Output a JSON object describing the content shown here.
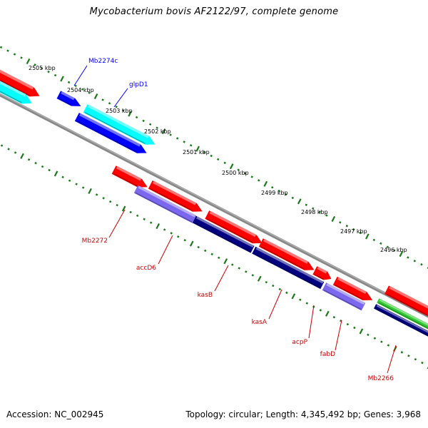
{
  "title": "Mycobacterium bovis AF2122/97, complete genome",
  "footer": {
    "accession": "Accession: NC_002945",
    "topology": "Topology: circular; Length: 4,345,492 bp; Genes: 3,968"
  },
  "colors": {
    "background": "#ffffff",
    "backbone": "#888888",
    "tick": "#1a7a1a",
    "forward_gene": "#ff0000",
    "forward_gene_alt": "#00ffff",
    "reverse_gene": "#0000ff",
    "reverse_gene_alt": "#7b68ee",
    "reverse_gene_dark": "#000080",
    "rna_gene": "#33cc33",
    "forward_label": "#0000ff",
    "reverse_label": "#cc0000"
  },
  "ticks": [
    {
      "label": "2505 kbp"
    },
    {
      "label": "2504 kbp"
    },
    {
      "label": "2503 kbp"
    },
    {
      "label": "2502 kbp"
    },
    {
      "label": "2501 kbp"
    },
    {
      "label": "2500 kbp"
    },
    {
      "label": "2499 kbp"
    },
    {
      "label": "2498 kbp"
    },
    {
      "label": "2497 kbp"
    },
    {
      "label": "2496 kbp"
    }
  ],
  "features": [
    {
      "name": "edge-red-upper",
      "color": "#ff0000"
    },
    {
      "name": "edge-cyan-lower",
      "color": "#00ffff"
    },
    {
      "name": "Mb2274c-small",
      "color": "#0000ff"
    },
    {
      "name": "Mb2274c",
      "color": "#0000ff"
    },
    {
      "name": "glpD1",
      "color": "#00ffff"
    },
    {
      "name": "Mb2272",
      "color": "#ff0000"
    },
    {
      "name": "accD6",
      "color": "#ff0000"
    },
    {
      "name": "accD6-shadow",
      "color": "#7b68ee"
    },
    {
      "name": "kasB",
      "color": "#ff0000"
    },
    {
      "name": "kasB-shadow",
      "color": "#000080"
    },
    {
      "name": "kasA",
      "color": "#ff0000"
    },
    {
      "name": "kasA-shadow",
      "color": "#000080"
    },
    {
      "name": "acpP",
      "color": "#ff0000"
    },
    {
      "name": "fabD",
      "color": "#ff0000"
    },
    {
      "name": "fabD-shadow",
      "color": "#7b68ee"
    },
    {
      "name": "Mb2266-rna",
      "color": "#33cc33"
    },
    {
      "name": "Mb2266",
      "color": "#000080"
    },
    {
      "name": "far-right-red",
      "color": "#ff0000"
    }
  ],
  "gene_labels": [
    {
      "text": "Mb2274c",
      "color": "#0000ff"
    },
    {
      "text": "glpD1",
      "color": "#0000ff"
    },
    {
      "text": "Mb2272",
      "color": "#cc0000"
    },
    {
      "text": "accD6",
      "color": "#cc0000"
    },
    {
      "text": "kasB",
      "color": "#cc0000"
    },
    {
      "text": "kasA",
      "color": "#cc0000"
    },
    {
      "text": "acpP",
      "color": "#cc0000"
    },
    {
      "text": "fabD",
      "color": "#cc0000"
    },
    {
      "text": "Mb2266",
      "color": "#cc0000"
    }
  ]
}
